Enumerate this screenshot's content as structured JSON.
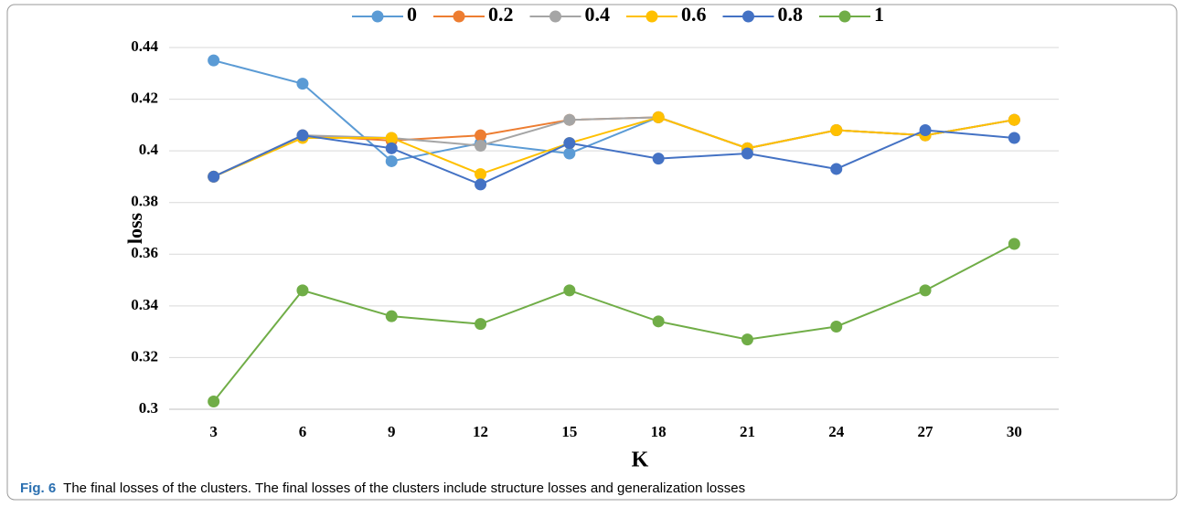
{
  "chart_data": {
    "type": "line",
    "x_label": "K",
    "y_label": "loss",
    "categories": [
      "3",
      "6",
      "9",
      "12",
      "15",
      "18",
      "21",
      "24",
      "27",
      "30"
    ],
    "series": [
      {
        "name": "0",
        "color": "#5b9bd5",
        "values": [
          0.435,
          0.426,
          0.396,
          0.403,
          0.399,
          0.413,
          0.401,
          0.408,
          0.406,
          0.412
        ]
      },
      {
        "name": "0.2",
        "color": "#ed7d31",
        "values": [
          0.39,
          0.406,
          0.404,
          0.406,
          0.412,
          0.413,
          0.401,
          0.408,
          0.406,
          0.412
        ]
      },
      {
        "name": "0.4",
        "color": "#a5a5a5",
        "values": [
          0.39,
          0.406,
          0.405,
          0.402,
          0.412,
          0.413,
          0.401,
          0.408,
          0.406,
          0.412
        ]
      },
      {
        "name": "0.6",
        "color": "#ffc000",
        "values": [
          0.39,
          0.405,
          0.405,
          0.391,
          0.403,
          0.413,
          0.401,
          0.408,
          0.406,
          0.412
        ]
      },
      {
        "name": "0.8",
        "color": "#4472c4",
        "values": [
          0.39,
          0.406,
          0.401,
          0.387,
          0.403,
          0.397,
          0.399,
          0.393,
          0.408,
          0.405
        ]
      },
      {
        "name": "1",
        "color": "#70ad47",
        "values": [
          0.303,
          0.346,
          0.336,
          0.333,
          0.346,
          0.334,
          0.327,
          0.332,
          0.346,
          0.364
        ]
      }
    ],
    "ylim": [
      0.3,
      0.44
    ],
    "yticks": [
      0.3,
      0.32,
      0.34,
      0.36,
      0.38,
      0.4,
      0.42,
      0.44
    ],
    "grid": true,
    "legend": "top",
    "caption": {
      "label": "Fig. 6",
      "text": "The final losses of the clusters. The final losses of the clusters include structure losses and generalization losses"
    }
  }
}
